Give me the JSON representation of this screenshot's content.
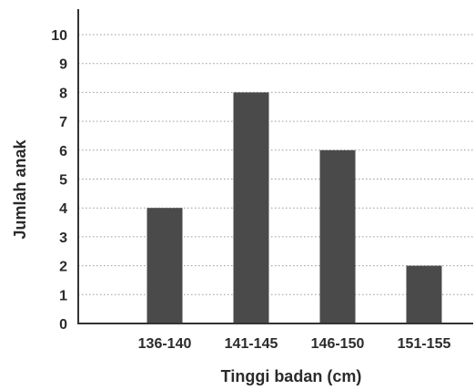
{
  "chart_data": {
    "type": "bar",
    "categories": [
      "136-140",
      "141-145",
      "146-150",
      "151-155"
    ],
    "values": [
      4,
      8,
      6,
      2
    ],
    "title": "",
    "xlabel": "Tinggi badan (cm)",
    "ylabel": "Jumlah anak",
    "ylim": [
      0,
      10
    ],
    "yticks": [
      "0",
      "1",
      "2",
      "3",
      "4",
      "5",
      "6",
      "7",
      "8",
      "9",
      "10"
    ],
    "grid": true,
    "bar_color": "#4a4a4a"
  }
}
